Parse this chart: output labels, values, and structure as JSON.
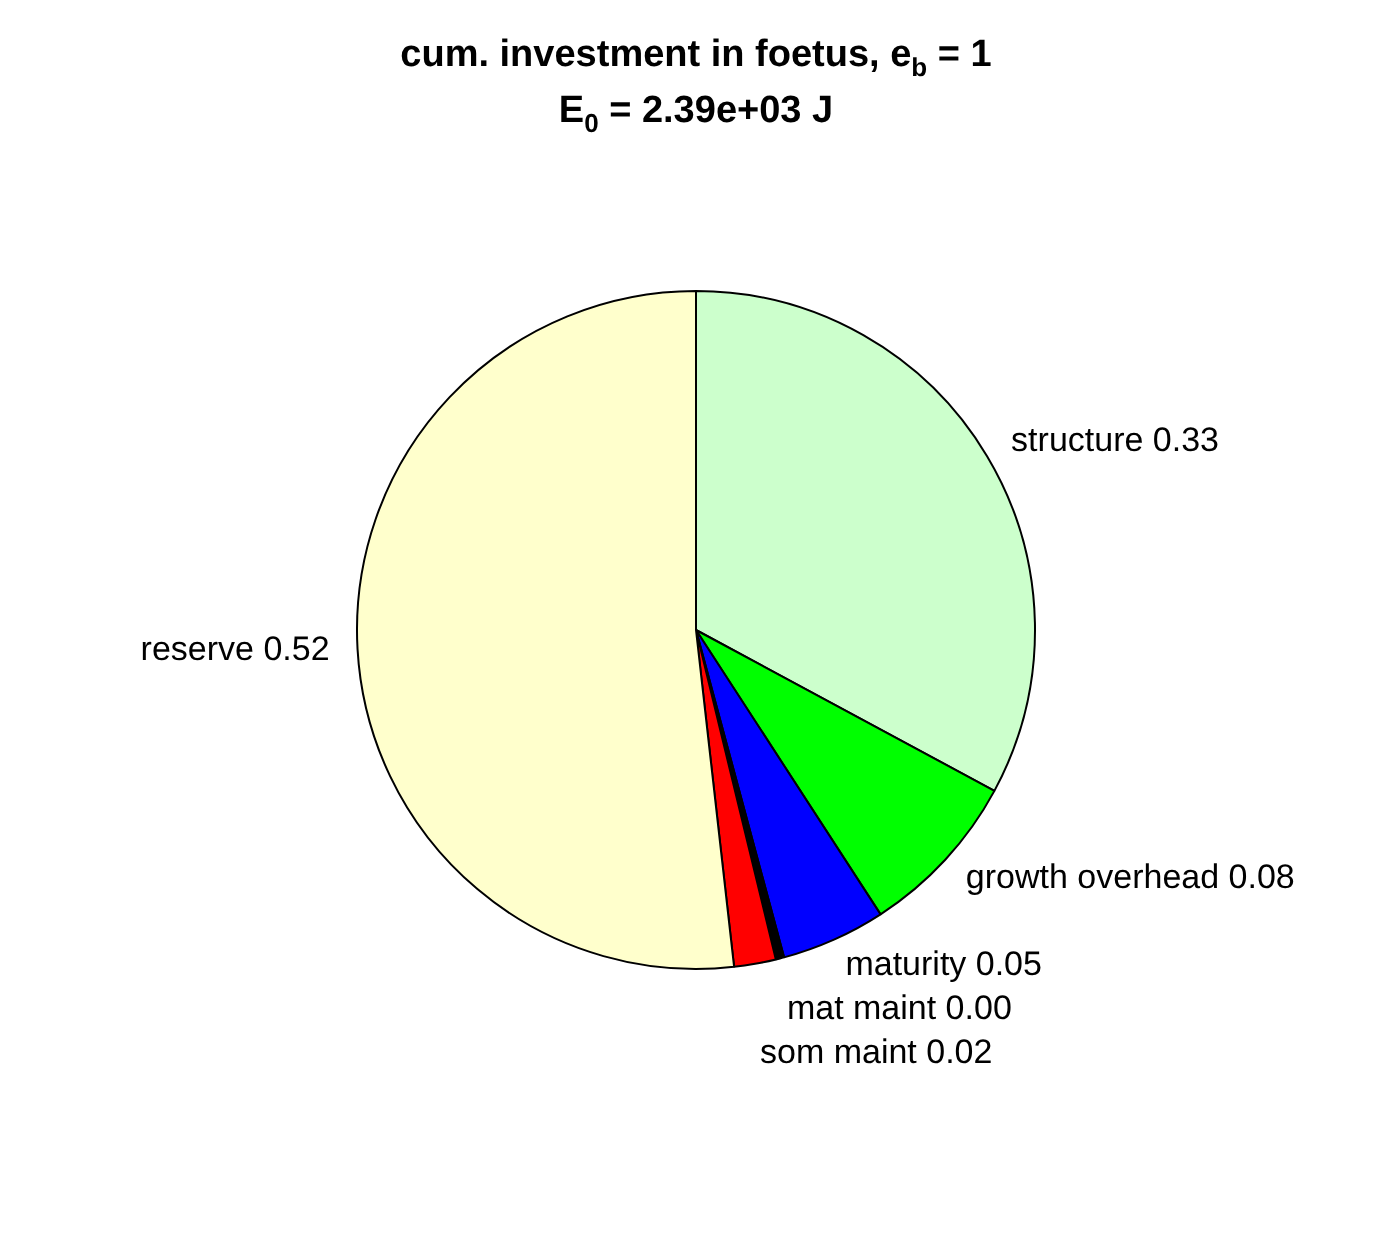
{
  "chart_data": {
    "type": "pie",
    "title": "cum. investment in foetus, e$_{b}$ = 1",
    "subtitle": "E$_{0}$ = 2.39e+03 J",
    "categories": [
      "structure",
      "growth overhead",
      "maturity",
      "mat maint",
      "som maint",
      "reserve"
    ],
    "values": [
      0.33,
      0.08,
      0.05,
      0.004,
      0.02,
      0.52
    ],
    "value_labels": [
      "0.33",
      "0.08",
      "0.05",
      "0.00",
      "0.02",
      "0.52"
    ],
    "colors": [
      "#ccffcc",
      "#00ff00",
      "#0000ff",
      "#000000",
      "#ff0000",
      "#ffffcc"
    ]
  }
}
